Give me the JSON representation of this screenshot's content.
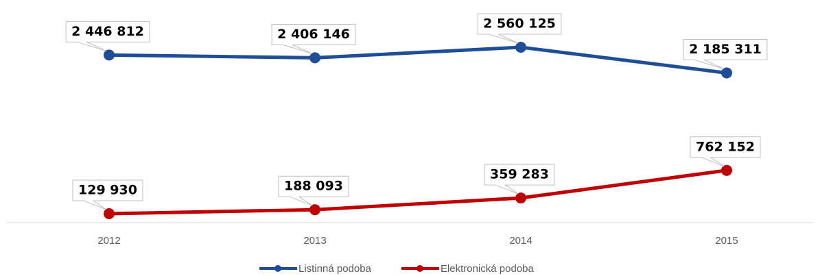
{
  "chart_data": {
    "type": "line",
    "categories": [
      "2012",
      "2013",
      "2014",
      "2015"
    ],
    "series": [
      {
        "name": "Listinná podoba",
        "color": "#1f4e98",
        "values": [
          2446812,
          2406146,
          2560125,
          2185311
        ],
        "value_labels": [
          "2 446 812",
          "2 406 146",
          "2 560 125",
          "2 185 311"
        ]
      },
      {
        "name": "Elektronická podoba",
        "color": "#c00000",
        "values": [
          129930,
          188093,
          359283,
          762152
        ],
        "value_labels": [
          "129 930",
          "188 093",
          "359 283",
          "762 152"
        ]
      }
    ],
    "ylim": [
      0,
      3000000
    ],
    "legend": "bottom"
  }
}
